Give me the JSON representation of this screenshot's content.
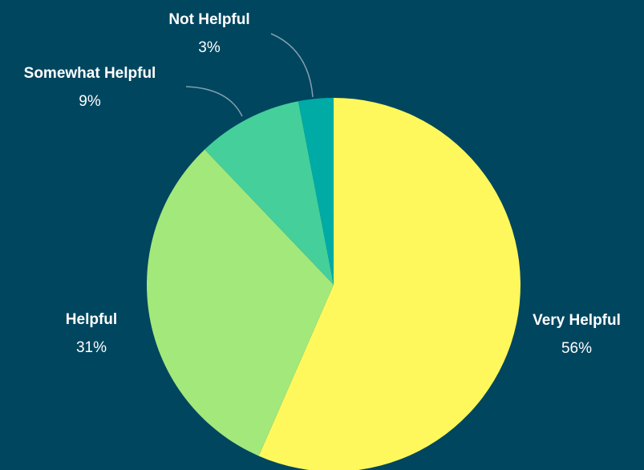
{
  "chart_data": {
    "type": "pie",
    "categories": [
      "Very Helpful",
      "Helpful",
      "Somewhat Helpful",
      "Not Helpful"
    ],
    "values": [
      56,
      31,
      9,
      3
    ],
    "value_labels": [
      "56%",
      "31%",
      "9%",
      "3%"
    ],
    "colors": [
      "#fff85c",
      "#a3e87a",
      "#45cf9b",
      "#00aba5"
    ]
  }
}
